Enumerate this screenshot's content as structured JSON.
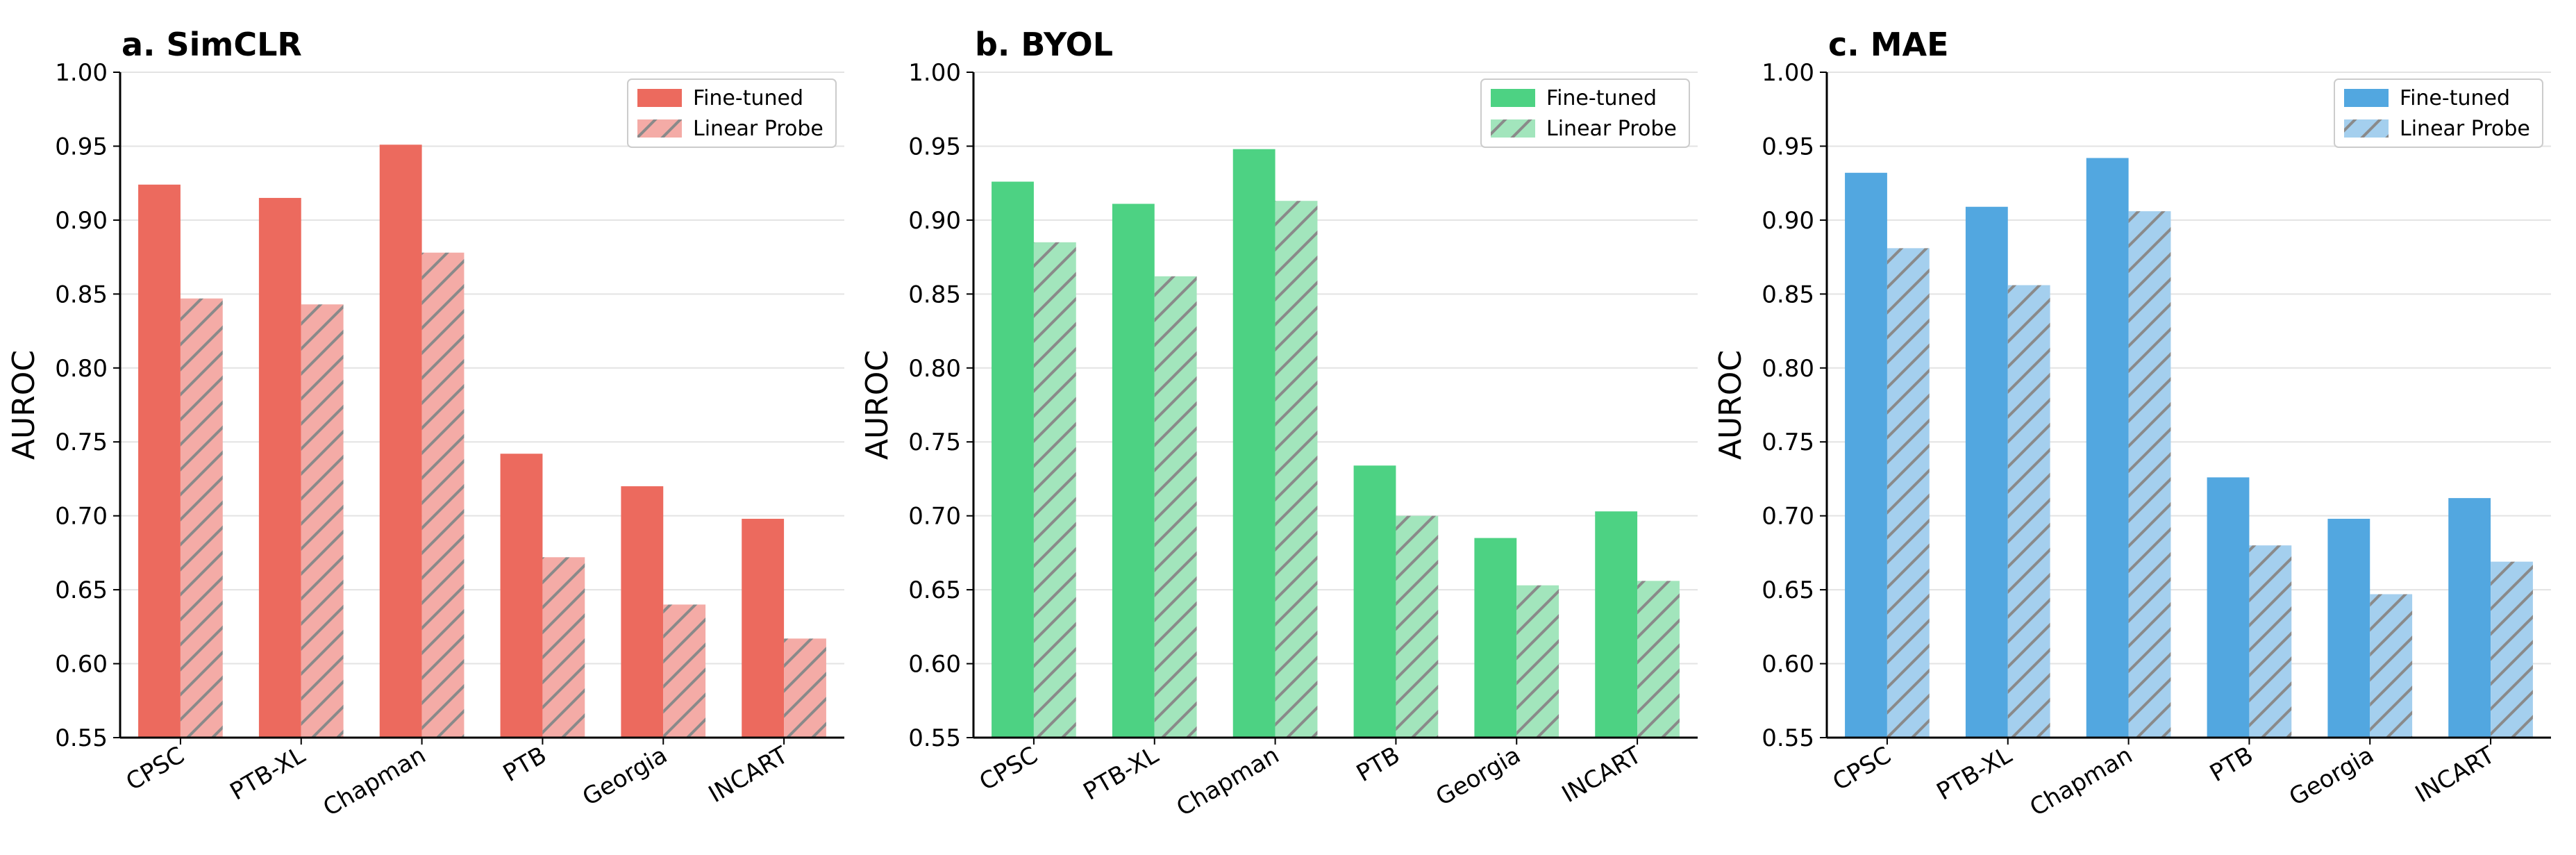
{
  "chart_data": [
    {
      "type": "bar",
      "title": "a. SimCLR",
      "ylabel": "AUROC",
      "xlabel": "",
      "ylim": [
        0.55,
        1.0
      ],
      "yticks": [
        "0.55",
        "0.60",
        "0.65",
        "0.70",
        "0.75",
        "0.80",
        "0.85",
        "0.90",
        "0.95",
        "1.00"
      ],
      "grid": "horizontal",
      "legend_position": "top-right",
      "categories": [
        "CPSC",
        "PTB-XL",
        "Chapman",
        "PTB",
        "Georgia",
        "INCART"
      ],
      "series": [
        {
          "name": "Fine-tuned",
          "values": [
            0.924,
            0.915,
            0.951,
            0.742,
            0.72,
            0.698
          ],
          "color": "#ec6a5e"
        },
        {
          "name": "Linear Probe",
          "values": [
            0.847,
            0.843,
            0.878,
            0.672,
            0.64,
            0.617
          ],
          "color": "#f4aba6",
          "hatch": true
        }
      ]
    },
    {
      "type": "bar",
      "title": "b. BYOL",
      "ylabel": "AUROC",
      "xlabel": "",
      "ylim": [
        0.55,
        1.0
      ],
      "yticks": [
        "0.55",
        "0.60",
        "0.65",
        "0.70",
        "0.75",
        "0.80",
        "0.85",
        "0.90",
        "0.95",
        "1.00"
      ],
      "grid": "horizontal",
      "legend_position": "top-right",
      "categories": [
        "CPSC",
        "PTB-XL",
        "Chapman",
        "PTB",
        "Georgia",
        "INCART"
      ],
      "series": [
        {
          "name": "Fine-tuned",
          "values": [
            0.926,
            0.911,
            0.948,
            0.734,
            0.685,
            0.703
          ],
          "color": "#4dd283"
        },
        {
          "name": "Linear Probe",
          "values": [
            0.885,
            0.862,
            0.913,
            0.7,
            0.653,
            0.656
          ],
          "color": "#a2e5bc",
          "hatch": true
        }
      ]
    },
    {
      "type": "bar",
      "title": "c. MAE",
      "ylabel": "AUROC",
      "xlabel": "",
      "ylim": [
        0.55,
        1.0
      ],
      "yticks": [
        "0.55",
        "0.60",
        "0.65",
        "0.70",
        "0.75",
        "0.80",
        "0.85",
        "0.90",
        "0.95",
        "1.00"
      ],
      "grid": "horizontal",
      "legend_position": "top-right",
      "categories": [
        "CPSC",
        "PTB-XL",
        "Chapman",
        "PTB",
        "Georgia",
        "INCART"
      ],
      "series": [
        {
          "name": "Fine-tuned",
          "values": [
            0.932,
            0.909,
            0.942,
            0.726,
            0.698,
            0.712
          ],
          "color": "#52a7e0"
        },
        {
          "name": "Linear Probe",
          "values": [
            0.881,
            0.856,
            0.906,
            0.68,
            0.647,
            0.669
          ],
          "color": "#a4cfee",
          "hatch": true
        }
      ]
    }
  ]
}
